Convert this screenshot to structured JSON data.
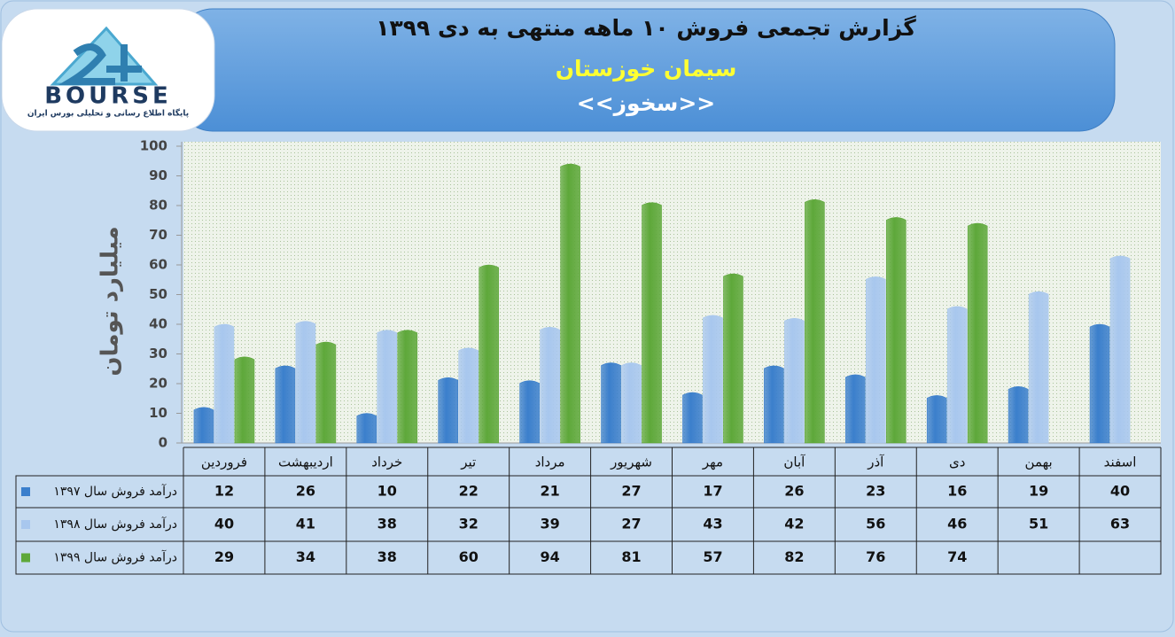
{
  "logo": {
    "name": "BOURSE",
    "tagline": "پایگاه اطلاع رسانی و تحلیلی بورس ایران"
  },
  "chart_data": {
    "type": "bar",
    "title": "گزارش تجمعی فروش ۱۰ ماهه منتهی به دی ۱۳۹۹",
    "subtitle": "سیمان خوزستان",
    "symbol": "<<سخوز>>",
    "y_label": "میلیارد تومان",
    "categories": [
      "فروردین",
      "اردیبهشت",
      "خرداد",
      "تیر",
      "مرداد",
      "شهریور",
      "مهر",
      "آبان",
      "آذر",
      "دی",
      "بهمن",
      "اسفند"
    ],
    "series": [
      {
        "name": "درآمد فروش سال ۱۳۹۷",
        "color": "#3b7fcc",
        "values": [
          12,
          26,
          10,
          22,
          21,
          27,
          17,
          26,
          23,
          16,
          19,
          40
        ]
      },
      {
        "name": "درآمد فروش سال ۱۳۹۸",
        "color": "#a8c7ee",
        "values": [
          40,
          41,
          38,
          32,
          39,
          27,
          43,
          42,
          56,
          46,
          51,
          63
        ]
      },
      {
        "name": "درآمد فروش سال ۱۳۹۹",
        "color": "#5ea83a",
        "values": [
          29,
          34,
          38,
          60,
          94,
          81,
          57,
          82,
          76,
          74,
          null,
          null
        ]
      }
    ],
    "ylim": [
      0,
      100
    ],
    "yticks": [
      0,
      10,
      20,
      30,
      40,
      50,
      60,
      70,
      80,
      90,
      100
    ],
    "grid": false
  }
}
